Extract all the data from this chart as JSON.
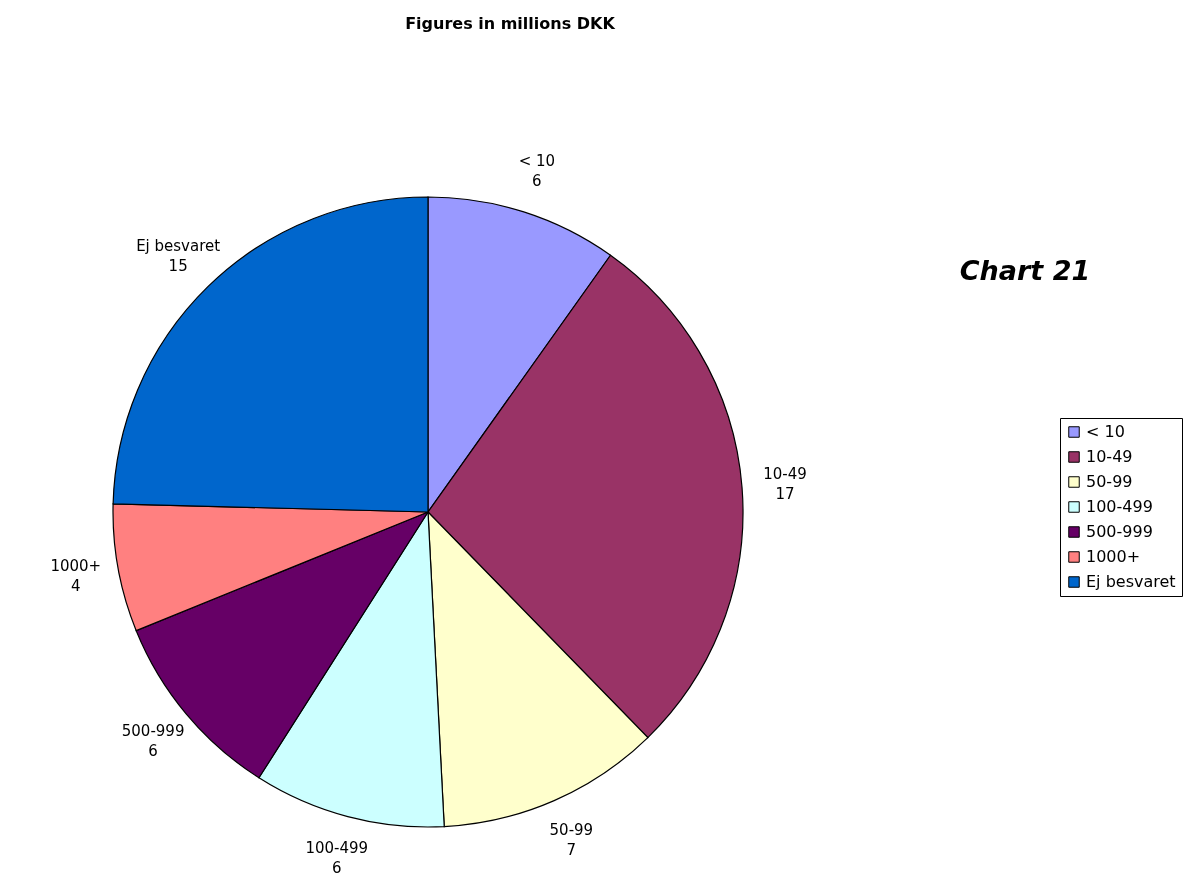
{
  "chart_data": {
    "type": "pie",
    "title": "Figures in millions DKK",
    "categories": [
      "< 10",
      "10-49",
      "50-99",
      "100-499",
      "500-999",
      "1000+",
      "Ej besvaret"
    ],
    "values": [
      6,
      17,
      7,
      6,
      6,
      4,
      15
    ],
    "colors": [
      "#9999ff",
      "#993366",
      "#ffffcc",
      "#ccffff",
      "#660066",
      "#ff8080",
      "#0066cc"
    ],
    "data_labels": true,
    "legend": "right",
    "annotations": [
      "Chart 21"
    ]
  }
}
